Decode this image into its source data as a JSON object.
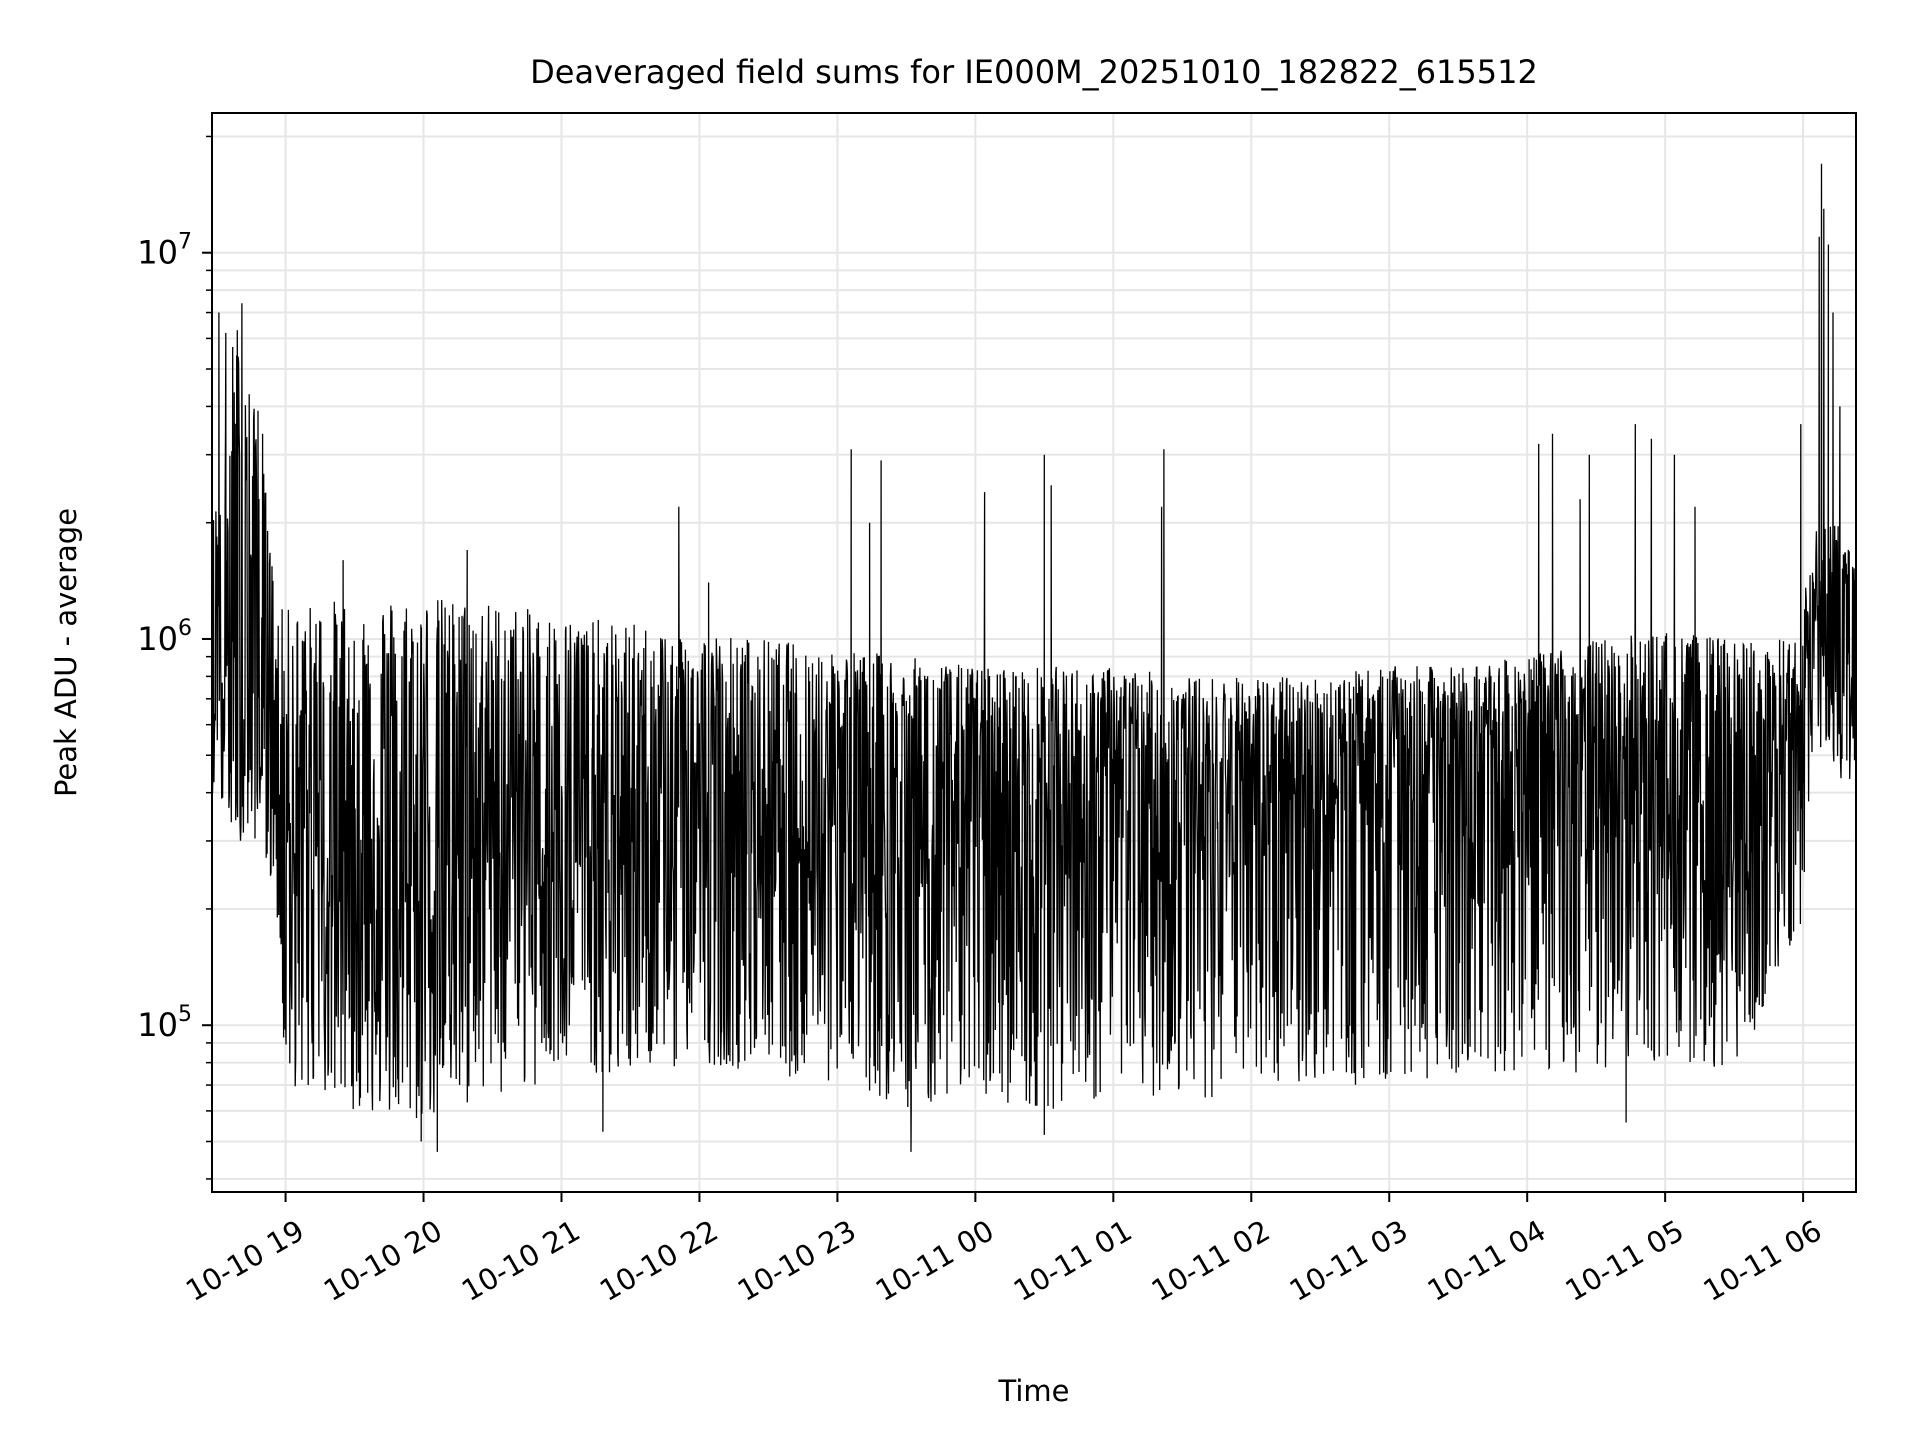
{
  "chart_data": {
    "type": "line",
    "title": "Deaveraged field sums for IE000M_20251010_182822_615512",
    "xlabel": "Time",
    "ylabel": "Peak ADU - average",
    "yscale": "log",
    "ylim": [
      37000,
      23000000
    ],
    "xlim": [
      "2025-10-10 18:28",
      "2025-10-11 06:23"
    ],
    "x_ticks": [
      {
        "value": "2025-10-10 19:00",
        "label": "10-10 19"
      },
      {
        "value": "2025-10-10 20:00",
        "label": "10-10 20"
      },
      {
        "value": "2025-10-10 21:00",
        "label": "10-10 21"
      },
      {
        "value": "2025-10-10 22:00",
        "label": "10-10 22"
      },
      {
        "value": "2025-10-10 23:00",
        "label": "10-10 23"
      },
      {
        "value": "2025-10-11 00:00",
        "label": "10-11 00"
      },
      {
        "value": "2025-10-11 01:00",
        "label": "10-11 01"
      },
      {
        "value": "2025-10-11 02:00",
        "label": "10-11 02"
      },
      {
        "value": "2025-10-11 03:00",
        "label": "10-11 03"
      },
      {
        "value": "2025-10-11 04:00",
        "label": "10-11 04"
      },
      {
        "value": "2025-10-11 05:00",
        "label": "10-11 05"
      },
      {
        "value": "2025-10-11 06:00",
        "label": "10-11 06"
      }
    ],
    "y_ticks": [
      {
        "value": 100000,
        "base": "10",
        "exp": "5"
      },
      {
        "value": 1000000,
        "base": "10",
        "exp": "6"
      },
      {
        "value": 10000000,
        "base": "10",
        "exp": "7"
      }
    ],
    "grid": true,
    "line_color": "#000000",
    "grid_color": "#e6e6e6",
    "series": [
      {
        "envelope": [
          {
            "x": "2025-10-10 18:28",
            "lo": 400000,
            "hi": 2000000,
            "mid": 900000
          },
          {
            "x": "2025-10-10 18:40",
            "lo": 300000,
            "hi": 6500000,
            "mid": 900000
          },
          {
            "x": "2025-10-10 18:50",
            "lo": 300000,
            "hi": 3000000,
            "mid": 800000
          },
          {
            "x": "2025-10-10 18:56",
            "lo": 200000,
            "hi": 1200000,
            "mid": 500000
          },
          {
            "x": "2025-10-10 19:00",
            "lo": 70000,
            "hi": 1200000,
            "mid": 300000
          },
          {
            "x": "2025-10-10 19:30",
            "lo": 60000,
            "hi": 1300000,
            "mid": 250000
          },
          {
            "x": "2025-10-10 20:00",
            "lo": 55000,
            "hi": 1300000,
            "mid": 250000
          },
          {
            "x": "2025-10-10 20:30",
            "lo": 65000,
            "hi": 1250000,
            "mid": 300000
          },
          {
            "x": "2025-10-10 21:00",
            "lo": 70000,
            "hi": 1150000,
            "mid": 300000
          },
          {
            "x": "2025-10-10 21:30",
            "lo": 75000,
            "hi": 1100000,
            "mid": 300000
          },
          {
            "x": "2025-10-10 22:00",
            "lo": 80000,
            "hi": 1050000,
            "mid": 320000
          },
          {
            "x": "2025-10-10 22:30",
            "lo": 75000,
            "hi": 1000000,
            "mid": 320000
          },
          {
            "x": "2025-10-10 23:00",
            "lo": 70000,
            "hi": 950000,
            "mid": 330000
          },
          {
            "x": "2025-10-10 23:30",
            "lo": 60000,
            "hi": 900000,
            "mid": 320000
          },
          {
            "x": "2025-10-11 00:00",
            "lo": 65000,
            "hi": 850000,
            "mid": 330000
          },
          {
            "x": "2025-10-11 00:30",
            "lo": 60000,
            "hi": 850000,
            "mid": 330000
          },
          {
            "x": "2025-10-11 01:00",
            "lo": 65000,
            "hi": 850000,
            "mid": 340000
          },
          {
            "x": "2025-10-11 01:30",
            "lo": 65000,
            "hi": 800000,
            "mid": 340000
          },
          {
            "x": "2025-10-11 02:00",
            "lo": 65000,
            "hi": 800000,
            "mid": 350000
          },
          {
            "x": "2025-10-11 02:30",
            "lo": 70000,
            "hi": 800000,
            "mid": 380000
          },
          {
            "x": "2025-10-11 03:00",
            "lo": 70000,
            "hi": 850000,
            "mid": 450000
          },
          {
            "x": "2025-10-11 03:30",
            "lo": 75000,
            "hi": 850000,
            "mid": 480000
          },
          {
            "x": "2025-10-11 04:00",
            "lo": 75000,
            "hi": 900000,
            "mid": 450000
          },
          {
            "x": "2025-10-11 04:30",
            "lo": 75000,
            "hi": 1000000,
            "mid": 400000
          },
          {
            "x": "2025-10-11 05:00",
            "lo": 80000,
            "hi": 1050000,
            "mid": 350000
          },
          {
            "x": "2025-10-11 05:30",
            "lo": 75000,
            "hi": 1000000,
            "mid": 300000
          },
          {
            "x": "2025-10-11 05:58",
            "lo": 150000,
            "hi": 1000000,
            "mid": 450000
          },
          {
            "x": "2025-10-11 06:05",
            "lo": 500000,
            "hi": 2000000,
            "mid": 1000000
          },
          {
            "x": "2025-10-11 06:23",
            "lo": 400000,
            "hi": 2000000,
            "mid": 1000000
          }
        ],
        "spikes": [
          {
            "x": "2025-10-10 18:31",
            "y": 7000000
          },
          {
            "x": "2025-10-10 18:34",
            "y": 6200000
          },
          {
            "x": "2025-10-10 18:37",
            "y": 5700000
          },
          {
            "x": "2025-10-10 18:39",
            "y": 6300000
          },
          {
            "x": "2025-10-10 18:41",
            "y": 7400000
          },
          {
            "x": "2025-10-10 18:48",
            "y": 3900000
          },
          {
            "x": "2025-10-10 18:50",
            "y": 3400000
          },
          {
            "x": "2025-10-10 19:25",
            "y": 1600000
          },
          {
            "x": "2025-10-10 20:19",
            "y": 1700000
          },
          {
            "x": "2025-10-10 21:51",
            "y": 2200000
          },
          {
            "x": "2025-10-10 22:04",
            "y": 1400000
          },
          {
            "x": "2025-10-10 23:06",
            "y": 3100000
          },
          {
            "x": "2025-10-10 23:14",
            "y": 2000000
          },
          {
            "x": "2025-10-10 23:19",
            "y": 2900000
          },
          {
            "x": "2025-10-11 00:04",
            "y": 2400000
          },
          {
            "x": "2025-10-11 00:30",
            "y": 3000000
          },
          {
            "x": "2025-10-11 00:33",
            "y": 2500000
          },
          {
            "x": "2025-10-11 01:21",
            "y": 2200000
          },
          {
            "x": "2025-10-11 01:22",
            "y": 3100000
          },
          {
            "x": "2025-10-11 04:05",
            "y": 3200000
          },
          {
            "x": "2025-10-11 04:11",
            "y": 3400000
          },
          {
            "x": "2025-10-11 04:23",
            "y": 2300000
          },
          {
            "x": "2025-10-11 04:27",
            "y": 3000000
          },
          {
            "x": "2025-10-11 04:47",
            "y": 3600000
          },
          {
            "x": "2025-10-11 04:54",
            "y": 3300000
          },
          {
            "x": "2025-10-11 05:04",
            "y": 3000000
          },
          {
            "x": "2025-10-11 05:13",
            "y": 2200000
          },
          {
            "x": "2025-10-11 05:59",
            "y": 3600000
          },
          {
            "x": "2025-10-11 06:07",
            "y": 11000000
          },
          {
            "x": "2025-10-11 06:08",
            "y": 17000000
          },
          {
            "x": "2025-10-11 06:09",
            "y": 13000000
          },
          {
            "x": "2025-10-11 06:11",
            "y": 10500000
          },
          {
            "x": "2025-10-11 06:13",
            "y": 7000000
          },
          {
            "x": "2025-10-11 06:16",
            "y": 4000000
          }
        ],
        "dips": [
          {
            "x": "2025-10-10 19:59",
            "y": 50000
          },
          {
            "x": "2025-10-10 20:06",
            "y": 47000
          },
          {
            "x": "2025-10-10 21:18",
            "y": 53000
          },
          {
            "x": "2025-10-10 23:32",
            "y": 47000
          },
          {
            "x": "2025-10-11 00:30",
            "y": 52000
          },
          {
            "x": "2025-10-11 04:43",
            "y": 56000
          }
        ]
      }
    ]
  }
}
